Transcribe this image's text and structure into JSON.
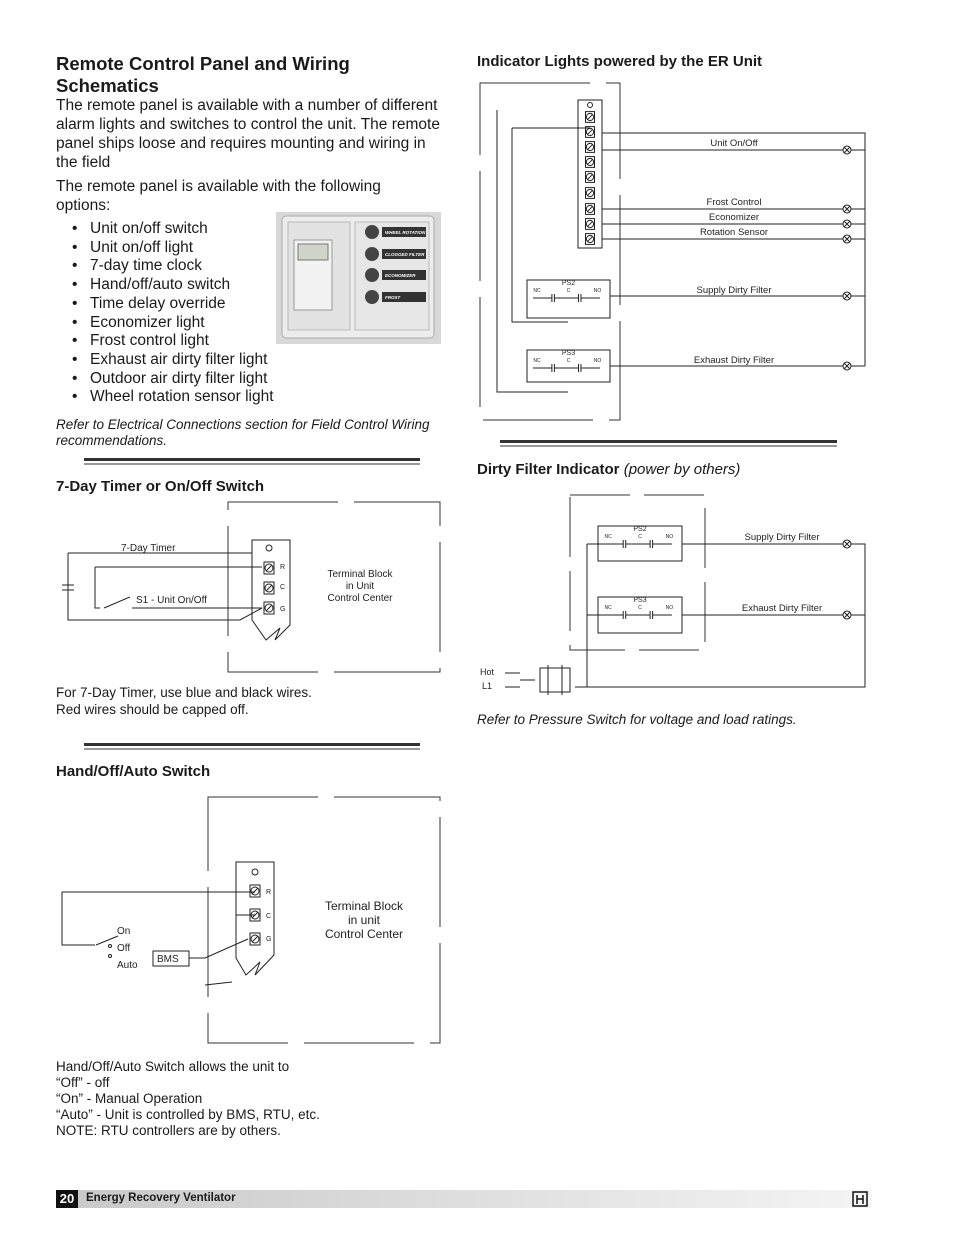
{
  "header": {
    "title": "Remote Control Panel and Wiring Schematics"
  },
  "intro": [
    "The remote panel is available with a number of different alarm lights and switches to control the unit. The remote panel ships loose and requires mounting and wiring in the field",
    "The remote panel is available with the following options:"
  ],
  "options": [
    "Unit on/off switch",
    "Unit on/off light",
    "7-day time clock",
    "Hand/off/auto switch",
    "Time delay override",
    "Economizer light",
    "Frost control light",
    "Exhaust air dirty filter light",
    "Outdoor air dirty filter light",
    "Wheel rotation sensor light"
  ],
  "panel_photo": {
    "buttons": [
      "WHEEL ROTATION",
      "CLOGGED FILTER",
      "ECONOMIZER",
      "FROST"
    ]
  },
  "note": "Refer to Electrical Connections section for Field Control Wiring recommendations.",
  "timer_section": {
    "heading": "7-Day Timer or On/Off Switch",
    "diagram": {
      "timer_label": "7-Day Timer",
      "switch_label": "S1 - Unit On/Off",
      "terminals": [
        "R",
        "C",
        "G"
      ],
      "terminal_block": [
        "Terminal Block",
        "in Unit",
        "Control Center"
      ]
    },
    "caption": [
      "For 7-Day Timer, use blue and black wires.",
      "Red wires should be capped off."
    ]
  },
  "hoa_section": {
    "heading": "Hand/Off/Auto Switch",
    "diagram": {
      "switch_positions": [
        "On",
        "Off",
        "Auto"
      ],
      "bms": "BMS",
      "terminals": [
        "R",
        "C",
        "G"
      ],
      "terminal_block": [
        "Terminal Block",
        "in unit",
        "Control Center"
      ]
    },
    "caption": [
      "Hand/Off/Auto Switch allows the unit to",
      "“Off” - off",
      "“On” - Manual Operation",
      "“Auto” - Unit is controlled by BMS, RTU, etc.",
      "NOTE: RTU controllers are by others."
    ]
  },
  "indicator_section": {
    "heading": "Indicator Lights powered by the ER Unit",
    "diagram": {
      "lights": [
        "Unit On/Off",
        "Frost Control",
        "Economizer",
        "Rotation Sensor"
      ],
      "switches": [
        {
          "name": "PS2",
          "contacts": [
            "NC",
            "C",
            "NO"
          ],
          "light": "Supply Dirty Filter"
        },
        {
          "name": "PS3",
          "contacts": [
            "NC",
            "C",
            "NO"
          ],
          "light": "Exhaust Dirty Filter"
        }
      ]
    }
  },
  "dirty_filter_section": {
    "heading": "Dirty Filter Indicator",
    "heading_note": "(power by others)",
    "diagram": {
      "switches": [
        {
          "name": "PS2",
          "contacts": [
            "NC",
            "C",
            "NO"
          ],
          "light": "Supply Dirty Filter"
        },
        {
          "name": "PS3",
          "contacts": [
            "NC",
            "C",
            "NO"
          ],
          "light": "Exhaust Dirty Filter"
        }
      ],
      "source": [
        "Hot",
        "L1"
      ]
    },
    "note": "Refer to Pressure Switch for voltage and load ratings."
  },
  "footer": {
    "page_number": "20",
    "title": "Energy Recovery Ventilator"
  }
}
